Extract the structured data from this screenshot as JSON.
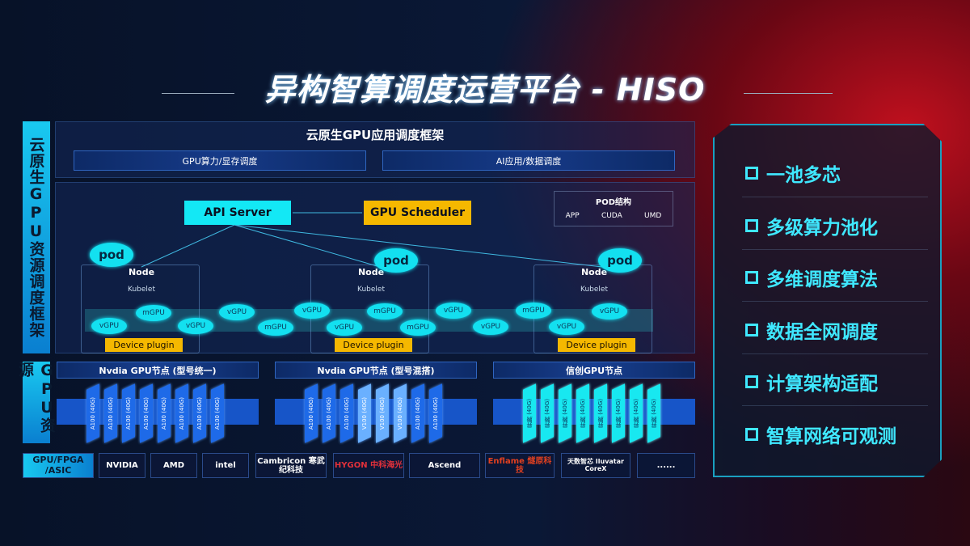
{
  "title": "异构智算调度运营平台 - HISO",
  "left_labels": {
    "framework": "云原生GPU资源调度框架",
    "resources": "GPU资源"
  },
  "framework": {
    "header": "云原生GPU应用调度框架",
    "sub": [
      "GPU算力/显存调度",
      "AI应用/数据调度"
    ],
    "api_server": "API Server",
    "gpu_scheduler": "GPU Scheduler",
    "pod_struct": {
      "title": "POD结构",
      "items": [
        "APP",
        "CUDA",
        "UMD"
      ]
    },
    "pod": "pod",
    "node": "Node",
    "kubelet": "Kubelet",
    "device_plugin": "Device plugin",
    "gpus": [
      "vGPU",
      "mGPU",
      "vGPU",
      "vGPU",
      "mGPU",
      "vGPU",
      "vGPU",
      "mGPU",
      "mGPU",
      "vGPU",
      "vGPU",
      "mGPU",
      "vGPU",
      "vGPU"
    ]
  },
  "gpu_nodes": [
    {
      "title": "Nvdia GPU节点 (型号统一)",
      "cards": [
        "A100 (40G)",
        "A100 (40G)",
        "A100 (40G)",
        "A100 (40G)",
        "A100 (40G)",
        "A100 (40G)",
        "A100 (40G)",
        "A100 (40G)"
      ]
    },
    {
      "title": "Nvdia GPU节点 (型号混搭)",
      "cards": [
        "A100 (40G)",
        "A100 (40G)",
        "A100 (40G)",
        "V100 (40G)",
        "V100 (40G)",
        "V100 (40G)",
        "A100 (40G)",
        "A100 (40G)"
      ]
    },
    {
      "title": "信创GPU节点",
      "cards": [
        "昇腾 (40G)",
        "昇腾 (40G)",
        "昇腾 (40G)",
        "昇腾 (40G)",
        "昇腾 (40G)",
        "昇腾 (40G)",
        "昇腾 (40G)",
        "昇腾 (40G)"
      ]
    }
  ],
  "vendors": {
    "label": "GPU/FPGA /ASIC",
    "items": [
      "NVIDIA",
      "AMD",
      "intel",
      "Cambricon 寒武纪科技",
      "HYGON 中科海光",
      "Ascend",
      "Enflame 燧原科技",
      "天数智芯 Iluvatar CoreX",
      "......"
    ]
  },
  "features": [
    "一池多芯",
    "多级算力池化",
    "多维调度算法",
    "数据全网调度",
    "计算架构适配",
    "智算网络可观测"
  ],
  "colors": {
    "accent": "#13e0f0",
    "highlight": "#f5b800",
    "red": "#c0101e"
  }
}
